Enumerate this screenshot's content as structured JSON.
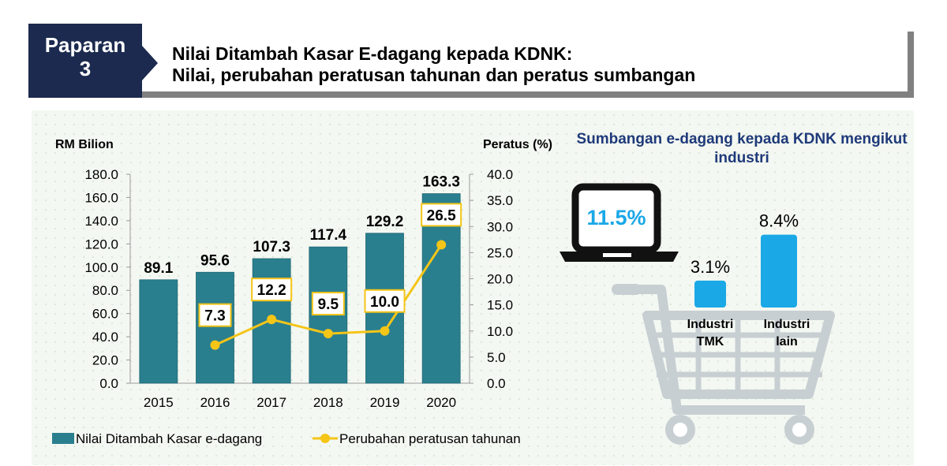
{
  "header": {
    "badge_line1": "Paparan",
    "badge_line2": "3",
    "title_line1": "Nilai Ditambah Kasar E-dagang kepada KDNK:",
    "title_line2": "Nilai, perubahan peratusan tahunan dan peratus sumbangan"
  },
  "colors": {
    "navy": "#1b2a4e",
    "bar": "#2a7f8e",
    "line": "#f5c518",
    "cyan": "#1aa8e6",
    "title_blue": "#1f3a7a",
    "icon_dark": "#111111",
    "cart_gray": "#c8cfd3"
  },
  "icons": [
    "laptop-icon",
    "shopping-cart-icon"
  ],
  "chart_data": [
    {
      "type": "bar",
      "categories": [
        "2015",
        "2016",
        "2017",
        "2018",
        "2019",
        "2020"
      ],
      "series": [
        {
          "name": "Nilai Ditambah Kasar e-dagang",
          "type": "bar",
          "axis": "left",
          "values": [
            89.1,
            95.6,
            107.3,
            117.4,
            129.2,
            163.3
          ],
          "labels": [
            "89.1",
            "95.6",
            "107.3",
            "117.4",
            "129.2",
            "163.3"
          ]
        },
        {
          "name": "Perubahan peratusan tahunan",
          "type": "line",
          "axis": "right",
          "values": [
            null,
            7.3,
            12.2,
            9.5,
            10.0,
            26.5
          ],
          "labels": [
            "",
            "7.3",
            "12.2",
            "9.5",
            "10.0",
            "26.5"
          ]
        }
      ],
      "ylabel": "RM Bilion",
      "ylabel_right": "Peratus (%)",
      "ylim": [
        0,
        180
      ],
      "ylim_right": [
        0,
        40
      ],
      "yticks": [
        "0.0",
        "20.0",
        "40.0",
        "60.0",
        "80.0",
        "100.0",
        "120.0",
        "140.0",
        "160.0",
        "180.0"
      ],
      "yticks_right": [
        "0.0",
        "5.0",
        "10.0",
        "15.0",
        "20.0",
        "25.0",
        "30.0",
        "35.0",
        "40.0"
      ],
      "grid": false,
      "legend": "bottom"
    },
    {
      "type": "bar",
      "title": "Sumbangan e-dagang kepada KDNK mengikut industri",
      "total_label": "11.5%",
      "categories": [
        "Industri TMK",
        "Industri lain"
      ],
      "category_lines": [
        [
          "Industri",
          "TMK"
        ],
        [
          "Industri",
          "lain"
        ]
      ],
      "values": [
        3.1,
        8.4
      ],
      "labels": [
        "3.1%",
        "8.4%"
      ]
    }
  ]
}
